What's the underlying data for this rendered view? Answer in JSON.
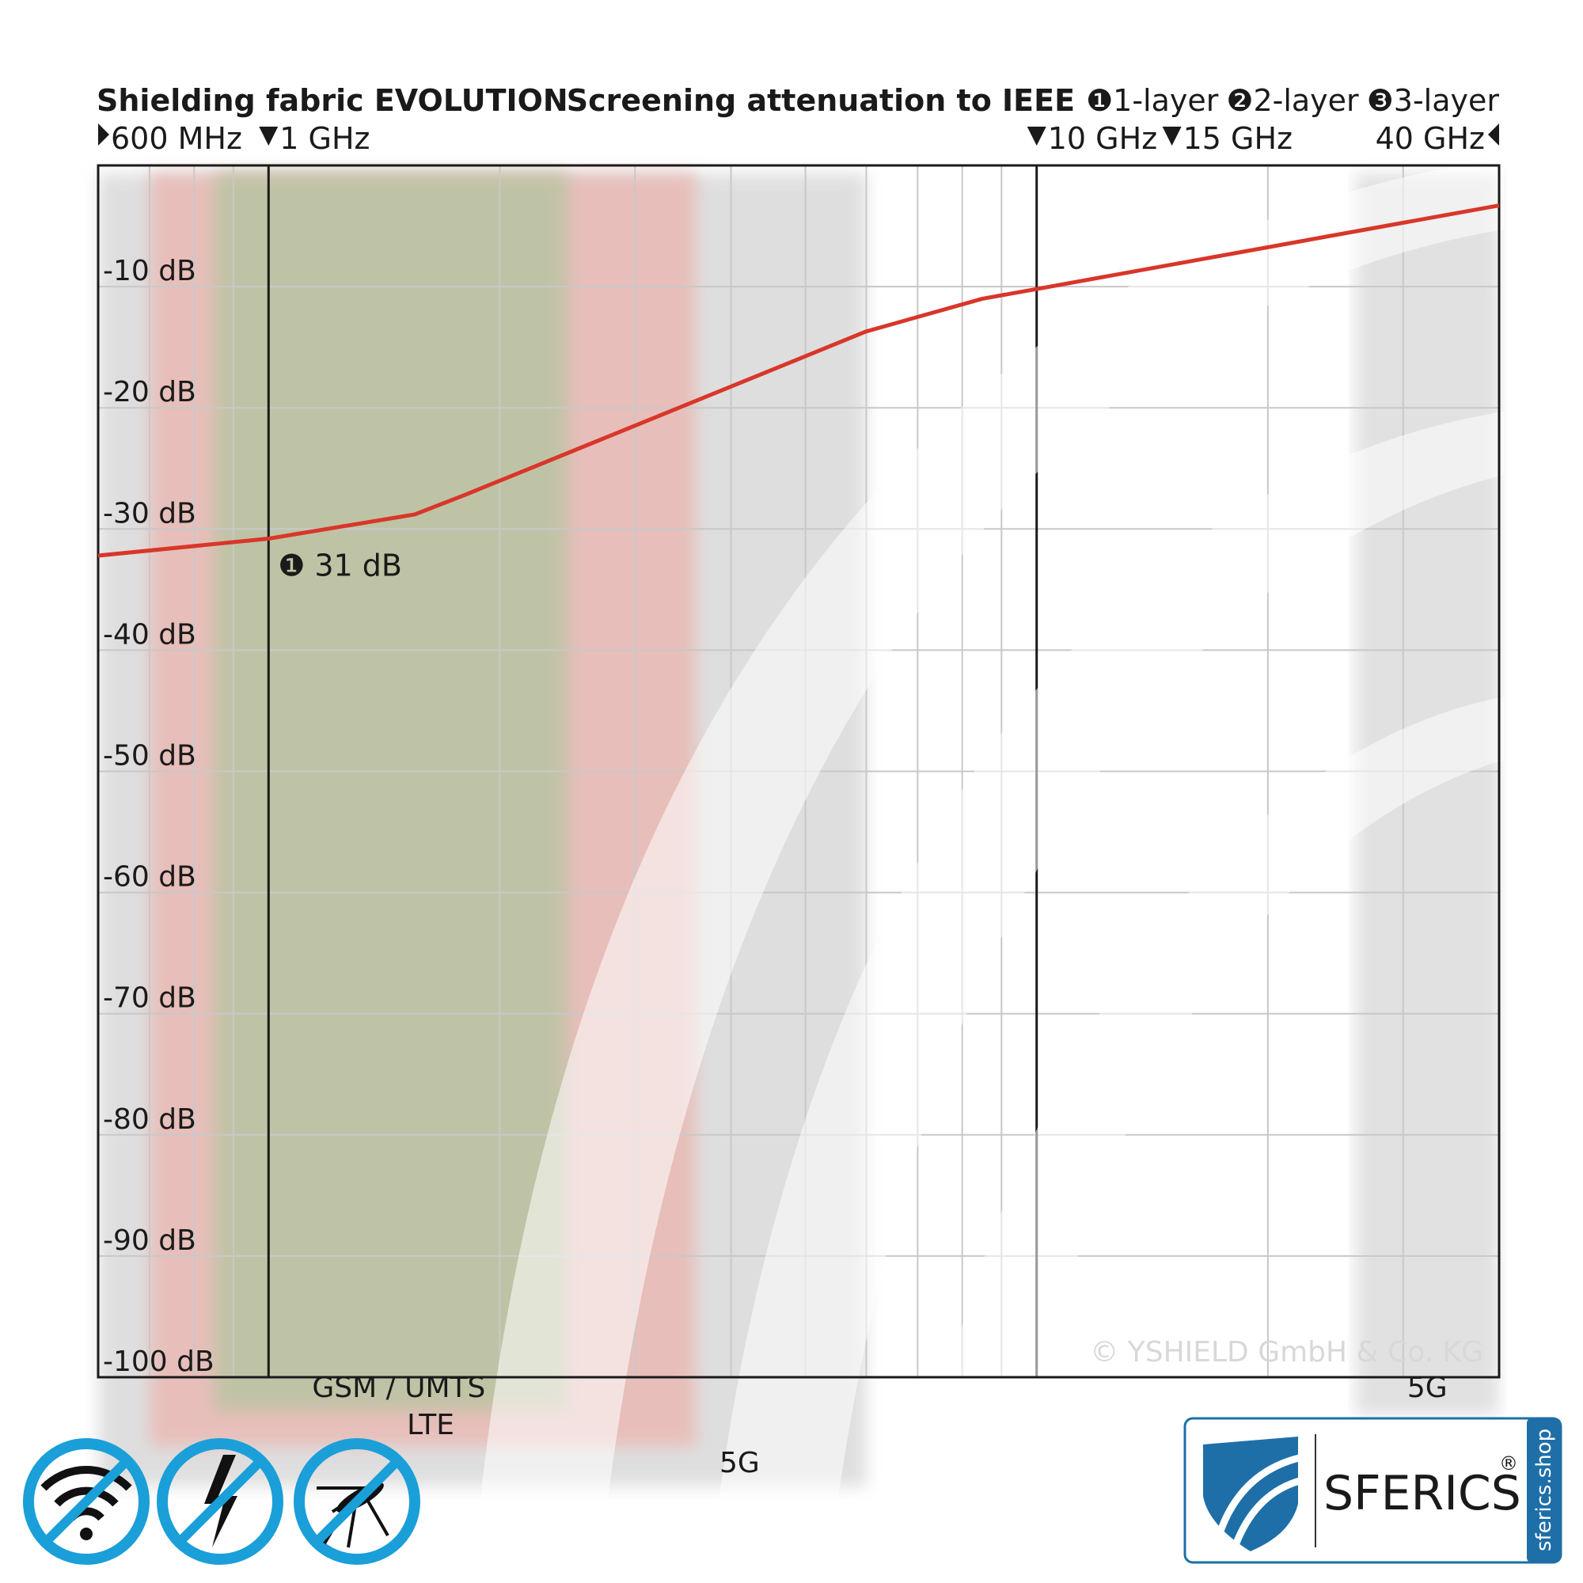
{
  "chart_data": {
    "type": "line",
    "title": "Shielding fabric EVOLUTION",
    "subtitle": "Screening attenuation to IEEE",
    "xscale": "log",
    "xlim": [
      0.6,
      40
    ],
    "ylim": [
      -100,
      0
    ],
    "xticks": [
      {
        "value": 0.6,
        "label": "600 MHz"
      },
      {
        "value": 1,
        "label": "1 GHz"
      },
      {
        "value": 10,
        "label": "10 GHz"
      },
      {
        "value": 15,
        "label": "15 GHz"
      },
      {
        "value": 40,
        "label": "40 GHz"
      }
    ],
    "xgrid": [
      0.7,
      0.8,
      0.9,
      1,
      2,
      3,
      4,
      5,
      6,
      7,
      8,
      9,
      10,
      20,
      30
    ],
    "yticks": [
      {
        "value": -10,
        "label": "-10 dB"
      },
      {
        "value": -20,
        "label": "-20 dB"
      },
      {
        "value": -30,
        "label": "-30 dB"
      },
      {
        "value": -40,
        "label": "-40 dB"
      },
      {
        "value": -50,
        "label": "-50 dB"
      },
      {
        "value": -60,
        "label": "-60 dB"
      },
      {
        "value": -70,
        "label": "-70 dB"
      },
      {
        "value": -80,
        "label": "-80 dB"
      },
      {
        "value": -90,
        "label": "-90 dB"
      },
      {
        "value": -100,
        "label": "-100 dB"
      }
    ],
    "grid": true,
    "x": [
      0.6,
      1,
      1.55,
      1.8,
      6,
      8.5,
      10,
      40
    ],
    "series": [
      {
        "name": "1-layer",
        "symbol": "❶",
        "color": "#d9362a",
        "values": [
          -32.2,
          -30.8,
          -28.8,
          -27.2,
          -13.7,
          -11,
          -10.2,
          -3.3
        ]
      }
    ],
    "other_layers": [
      {
        "symbol": "❷",
        "label": "2-layer"
      },
      {
        "symbol": "❸",
        "label": "3-layer"
      }
    ],
    "annotation": {
      "symbol": "❶",
      "label": "31 dB",
      "x": 1,
      "y": -31
    },
    "bands": [
      {
        "label": "5G",
        "range": [
          0.6,
          6
        ],
        "color": "#d9d9d9"
      },
      {
        "label": "LTE",
        "range": [
          0.7,
          3.6
        ],
        "color": "#e9b9b4"
      },
      {
        "label": "GSM / UMTS",
        "range": [
          0.85,
          2.45
        ],
        "color": "#b9c4a2"
      },
      {
        "label": "5G",
        "range": [
          26,
          40
        ],
        "color": "#dcdcdc"
      }
    ],
    "copyright": "© YSHIELD GmbH & Co. KG",
    "logo": {
      "brand": "SFERICS",
      "mark": "®",
      "site": "sferics.shop"
    }
  }
}
